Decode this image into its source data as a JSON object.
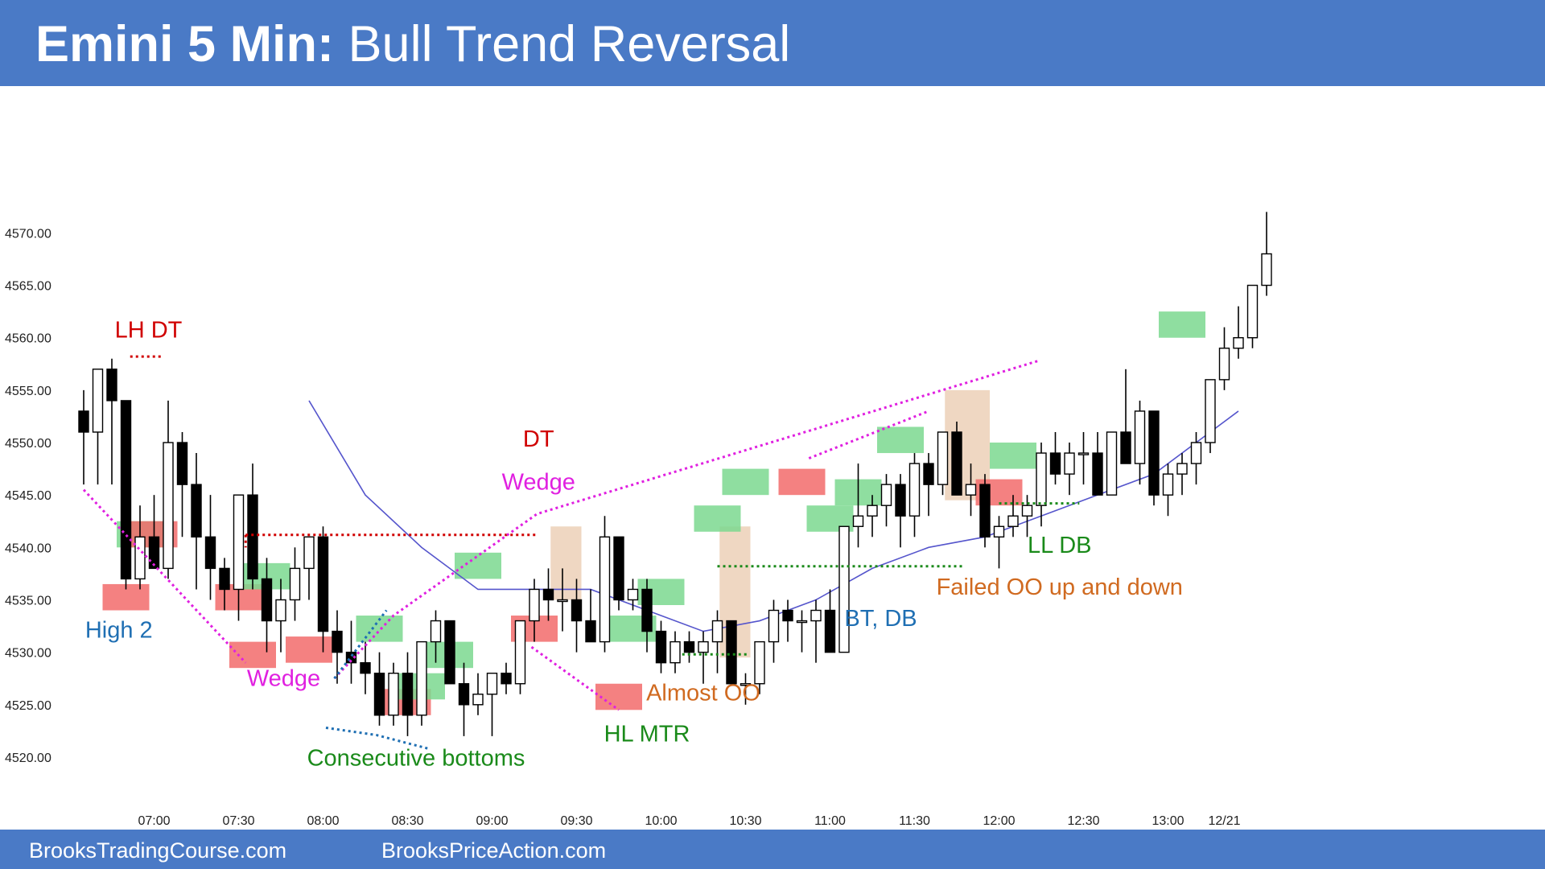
{
  "header": {
    "title_bold": "Emini 5 Min:",
    "title_rest": " Bull Trend Reversal"
  },
  "footer": {
    "site_left": "BrooksTradingCourse.com",
    "site_right": "BrooksPriceAction.com"
  },
  "colors": {
    "banner": "#4a7ac6",
    "bull_bar": "#ffffff",
    "bear_bar": "#000000",
    "ema": "#5555cc",
    "buy_signal": "#7bd88f",
    "sell_signal": "#f26b6b",
    "oo_box": "#e9c9ad"
  },
  "chart_data": {
    "type": "candlestick",
    "ylim": [
      4518,
      4584
    ],
    "y_ticks": [
      "4520.00",
      "4525.00",
      "4530.00",
      "4535.00",
      "4540.00",
      "4545.00",
      "4550.00",
      "4555.00",
      "4560.00",
      "4565.00",
      "4570.00"
    ],
    "x_ticks": [
      {
        "bar": 5,
        "label": "07:00"
      },
      {
        "bar": 11,
        "label": "07:30"
      },
      {
        "bar": 17,
        "label": "08:00"
      },
      {
        "bar": 23,
        "label": "08:30"
      },
      {
        "bar": 29,
        "label": "09:00"
      },
      {
        "bar": 35,
        "label": "09:30"
      },
      {
        "bar": 41,
        "label": "10:00"
      },
      {
        "bar": 47,
        "label": "10:30"
      },
      {
        "bar": 53,
        "label": "11:00"
      },
      {
        "bar": 59,
        "label": "11:30"
      },
      {
        "bar": 65,
        "label": "12:00"
      },
      {
        "bar": 71,
        "label": "12:30"
      },
      {
        "bar": 77,
        "label": "13:00"
      },
      {
        "bar": 81,
        "label": "12/21"
      }
    ],
    "candles": [
      [
        4553,
        4555,
        4546,
        4551
      ],
      [
        4551,
        4557,
        4546,
        4557
      ],
      [
        4557,
        4558,
        4546,
        4554
      ],
      [
        4554,
        4554,
        4536,
        4537
      ],
      [
        4537,
        4544,
        4536,
        4541
      ],
      [
        4541,
        4545,
        4538,
        4538
      ],
      [
        4538,
        4554,
        4537,
        4550
      ],
      [
        4550,
        4551,
        4541,
        4546
      ],
      [
        4546,
        4549,
        4536,
        4541
      ],
      [
        4541,
        4545,
        4535,
        4538
      ],
      [
        4538,
        4539,
        4534,
        4536
      ],
      [
        4536,
        4545,
        4533,
        4545
      ],
      [
        4545,
        4548,
        4536,
        4537
      ],
      [
        4537,
        4539,
        4530,
        4533
      ],
      [
        4533,
        4537,
        4530,
        4535
      ],
      [
        4535,
        4540,
        4533,
        4538
      ],
      [
        4538,
        4541,
        4535,
        4541
      ],
      [
        4541,
        4542,
        4530,
        4532
      ],
      [
        4532,
        4534,
        4527,
        4530
      ],
      [
        4530,
        4533,
        4527,
        4529
      ],
      [
        4529,
        4531,
        4526,
        4528
      ],
      [
        4528,
        4530,
        4523,
        4524
      ],
      [
        4524,
        4529,
        4523,
        4528
      ],
      [
        4528,
        4530,
        4522,
        4524
      ],
      [
        4524,
        4531,
        4523,
        4531
      ],
      [
        4531,
        4534,
        4529,
        4533
      ],
      [
        4533,
        4533,
        4527,
        4527
      ],
      [
        4527,
        4529,
        4522,
        4525
      ],
      [
        4525,
        4528,
        4524,
        4526
      ],
      [
        4526,
        4528,
        4522,
        4528
      ],
      [
        4528,
        4529,
        4526,
        4527
      ],
      [
        4527,
        4533,
        4526,
        4533
      ],
      [
        4533,
        4537,
        4531,
        4536
      ],
      [
        4536,
        4538,
        4533,
        4535
      ],
      [
        4535,
        4538,
        4532,
        4535
      ],
      [
        4535,
        4537,
        4530,
        4533
      ],
      [
        4533,
        4536,
        4531,
        4531
      ],
      [
        4531,
        4543,
        4530,
        4541
      ],
      [
        4541,
        4541,
        4534,
        4535
      ],
      [
        4535,
        4537,
        4534,
        4536
      ],
      [
        4536,
        4537,
        4530,
        4532
      ],
      [
        4532,
        4533,
        4528,
        4529
      ],
      [
        4529,
        4532,
        4528,
        4531
      ],
      [
        4531,
        4532,
        4529,
        4530
      ],
      [
        4530,
        4532,
        4527,
        4531
      ],
      [
        4531,
        4534,
        4528,
        4533
      ],
      [
        4533,
        4533,
        4527,
        4527
      ],
      [
        4527,
        4528,
        4525,
        4527
      ],
      [
        4527,
        4531,
        4526,
        4531
      ],
      [
        4531,
        4535,
        4529,
        4534
      ],
      [
        4534,
        4535,
        4531,
        4533
      ],
      [
        4533,
        4534,
        4530,
        4533
      ],
      [
        4533,
        4535,
        4529,
        4534
      ],
      [
        4534,
        4536,
        4530,
        4530
      ],
      [
        4530,
        4542,
        4530,
        4542
      ],
      [
        4542,
        4548,
        4540,
        4543
      ],
      [
        4543,
        4545,
        4541,
        4544
      ],
      [
        4544,
        4547,
        4542,
        4546
      ],
      [
        4546,
        4547,
        4540,
        4543
      ],
      [
        4543,
        4549,
        4541,
        4548
      ],
      [
        4548,
        4549,
        4543,
        4546
      ],
      [
        4546,
        4551,
        4545,
        4551
      ],
      [
        4551,
        4552,
        4545,
        4545
      ],
      [
        4545,
        4548,
        4543,
        4546
      ],
      [
        4546,
        4547,
        4540,
        4541
      ],
      [
        4541,
        4543,
        4538,
        4542
      ],
      [
        4542,
        4545,
        4541,
        4543
      ],
      [
        4543,
        4545,
        4541,
        4544
      ],
      [
        4544,
        4550,
        4542,
        4549
      ],
      [
        4549,
        4551,
        4546,
        4547
      ],
      [
        4547,
        4550,
        4545,
        4549
      ],
      [
        4549,
        4551,
        4546,
        4549
      ],
      [
        4549,
        4551,
        4545,
        4545
      ],
      [
        4545,
        4551,
        4545,
        4551
      ],
      [
        4551,
        4557,
        4548,
        4548
      ],
      [
        4548,
        4554,
        4546,
        4553
      ],
      [
        4553,
        4553,
        4544,
        4545
      ],
      [
        4545,
        4548,
        4543,
        4547
      ],
      [
        4547,
        4549,
        4545,
        4548
      ],
      [
        4548,
        4551,
        4546,
        4550
      ],
      [
        4550,
        4556,
        4549,
        4556
      ],
      [
        4556,
        4561,
        4555,
        4559
      ],
      [
        4559,
        4563,
        4558,
        4560
      ],
      [
        4560,
        4565,
        4559,
        4565
      ],
      [
        4565,
        4572,
        4564,
        4568
      ]
    ],
    "ema": [
      [
        16,
        4554
      ],
      [
        20,
        4545
      ],
      [
        24,
        4540
      ],
      [
        28,
        4536
      ],
      [
        32,
        4536
      ],
      [
        36,
        4536
      ],
      [
        40,
        4534
      ],
      [
        44,
        4532
      ],
      [
        48,
        4533
      ],
      [
        52,
        4535
      ],
      [
        56,
        4538
      ],
      [
        60,
        4540
      ],
      [
        64,
        4541
      ],
      [
        68,
        4543
      ],
      [
        72,
        4545
      ],
      [
        76,
        4547
      ],
      [
        80,
        4551
      ],
      [
        82,
        4553
      ]
    ],
    "annotations": [
      {
        "text": "LH DT",
        "bar": 4.6,
        "price": 4560,
        "color": "#d00000"
      },
      {
        "text": "High 2",
        "bar": 2.5,
        "price": 4531.4,
        "color": "#1f6fb3"
      },
      {
        "text": "Wedge",
        "bar": 14.2,
        "price": 4526.8,
        "color": "#e020e0"
      },
      {
        "text": "Consecutive bottoms",
        "bar": 23.6,
        "price": 4519.2,
        "color": "#1a8a1a"
      },
      {
        "text": "DT",
        "bar": 32.3,
        "price": 4549.6,
        "color": "#d00000"
      },
      {
        "text": "Wedge",
        "bar": 32.3,
        "price": 4545.5,
        "color": "#e020e0"
      },
      {
        "text": "HL MTR",
        "bar": 40.0,
        "price": 4521.5,
        "color": "#1a8a1a"
      },
      {
        "text": "Almost OO",
        "bar": 44.0,
        "price": 4525.4,
        "color": "#d06a20"
      },
      {
        "text": "BT, DB",
        "bar": 56.6,
        "price": 4532.5,
        "color": "#1f6fb3"
      },
      {
        "text": "LL DB",
        "bar": 69.3,
        "price": 4539.5,
        "color": "#1a8a1a"
      },
      {
        "text": "Failed OO up and down",
        "bar": 69.3,
        "price": 4535.5,
        "color": "#d06a20"
      }
    ],
    "signal_boxes": [
      {
        "bar": 4,
        "top": 4542.5,
        "bottom": 4540.0,
        "kind": "buy"
      },
      {
        "bar": 3,
        "top": 4536.5,
        "bottom": 4534.0,
        "kind": "sell"
      },
      {
        "bar": 5,
        "top": 4542.5,
        "bottom": 4540.0,
        "kind": "sell"
      },
      {
        "bar": 11,
        "top": 4536.5,
        "bottom": 4534.0,
        "kind": "sell"
      },
      {
        "bar": 12,
        "top": 4531.0,
        "bottom": 4528.5,
        "kind": "sell"
      },
      {
        "bar": 13,
        "top": 4538.5,
        "bottom": 4536.0,
        "kind": "buy"
      },
      {
        "bar": 16,
        "top": 4531.5,
        "bottom": 4529.0,
        "kind": "sell"
      },
      {
        "bar": 21,
        "top": 4533.5,
        "bottom": 4531.0,
        "kind": "buy"
      },
      {
        "bar": 23,
        "top": 4526.5,
        "bottom": 4524.0,
        "kind": "sell"
      },
      {
        "bar": 24,
        "top": 4528.0,
        "bottom": 4525.5,
        "kind": "buy"
      },
      {
        "bar": 26,
        "top": 4531.0,
        "bottom": 4528.5,
        "kind": "buy"
      },
      {
        "bar": 28,
        "top": 4539.5,
        "bottom": 4537.0,
        "kind": "buy"
      },
      {
        "bar": 32,
        "top": 4533.5,
        "bottom": 4531.0,
        "kind": "sell"
      },
      {
        "bar": 38,
        "top": 4527.0,
        "bottom": 4524.5,
        "kind": "sell"
      },
      {
        "bar": 39,
        "top": 4533.5,
        "bottom": 4531.0,
        "kind": "buy"
      },
      {
        "bar": 41,
        "top": 4537.0,
        "bottom": 4534.5,
        "kind": "buy"
      },
      {
        "bar": 45,
        "top": 4544.0,
        "bottom": 4541.5,
        "kind": "buy"
      },
      {
        "bar": 47,
        "top": 4547.5,
        "bottom": 4545.0,
        "kind": "buy"
      },
      {
        "bar": 51,
        "top": 4547.5,
        "bottom": 4545.0,
        "kind": "sell"
      },
      {
        "bar": 53,
        "top": 4544.0,
        "bottom": 4541.5,
        "kind": "buy"
      },
      {
        "bar": 55,
        "top": 4546.5,
        "bottom": 4544.0,
        "kind": "buy"
      },
      {
        "bar": 58,
        "top": 4551.5,
        "bottom": 4549.0,
        "kind": "buy"
      },
      {
        "bar": 65,
        "top": 4546.5,
        "bottom": 4544.0,
        "kind": "sell"
      },
      {
        "bar": 66,
        "top": 4550.0,
        "bottom": 4547.5,
        "kind": "buy"
      },
      {
        "bar": 78,
        "top": 4562.5,
        "bottom": 4560.0,
        "kind": "buy"
      }
    ],
    "oo_boxes": [
      {
        "from_bar": 33.5,
        "to_bar": 35.0,
        "top": 4542.0,
        "bottom": 4535.0
      },
      {
        "from_bar": 45.5,
        "to_bar": 47.0,
        "top": 4542.0,
        "bottom": 4529.5
      },
      {
        "from_bar": 61.5,
        "to_bar": 64.0,
        "top": 4555.0,
        "bottom": 4544.5
      }
    ],
    "lines": [
      {
        "pts": [
          [
            3.3,
            4558.2
          ],
          [
            5.5,
            4558.2
          ]
        ],
        "color": "#d00000",
        "dash": "3,4",
        "width": 3
      },
      {
        "pts": [
          [
            11.5,
            4541.2
          ],
          [
            32.3,
            4541.2
          ]
        ],
        "color": "#d00000",
        "dash": "3,4",
        "width": 3
      },
      {
        "pts": [
          [
            11.5,
            4541.2
          ],
          [
            11.5,
            4540.0
          ]
        ],
        "color": "#d00000",
        "dash": "3,4",
        "width": 3
      },
      {
        "pts": [
          [
            0,
            4545.5
          ],
          [
            11.5,
            4529
          ]
        ],
        "color": "#e020e0",
        "dash": "3,4",
        "width": 3
      },
      {
        "pts": [
          [
            17.8,
            4527.5
          ],
          [
            22,
            4533.5
          ],
          [
            32.2,
            4543.2
          ],
          [
            67.8,
            4557.8
          ]
        ],
        "color": "#e020e0",
        "dash": "3,4",
        "width": 3
      },
      {
        "pts": [
          [
            31.8,
            4530.5
          ],
          [
            38,
            4524.5
          ]
        ],
        "color": "#e020e0",
        "dash": "3,4",
        "width": 3
      },
      {
        "pts": [
          [
            51.5,
            4548.5
          ],
          [
            60,
            4553
          ]
        ],
        "color": "#e020e0",
        "dash": "3,4",
        "width": 3
      },
      {
        "pts": [
          [
            17.2,
            4522.8
          ],
          [
            20.8,
            4522.1
          ],
          [
            24.5,
            4520.8
          ]
        ],
        "color": "#1f6fb3",
        "dash": "3,4",
        "width": 3
      },
      {
        "pts": [
          [
            17.8,
            4527.5
          ],
          [
            21.5,
            4534
          ]
        ],
        "color": "#1f6fb3",
        "dash": "3,4",
        "width": 3
      },
      {
        "pts": [
          [
            42.5,
            4529.8
          ],
          [
            47.2,
            4529.8
          ]
        ],
        "color": "#1a8a1a",
        "dash": "3,4",
        "width": 3
      },
      {
        "pts": [
          [
            45.0,
            4538.2
          ],
          [
            62.4,
            4538.2
          ]
        ],
        "color": "#1a8a1a",
        "dash": "3,4",
        "width": 3
      },
      {
        "pts": [
          [
            65.0,
            4544.2
          ],
          [
            70.7,
            4544.2
          ]
        ],
        "color": "#1a8a1a",
        "dash": "3,4",
        "width": 3
      }
    ]
  }
}
